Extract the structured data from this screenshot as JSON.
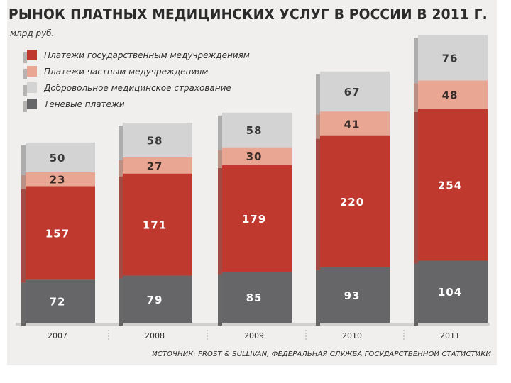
{
  "chart_data": {
    "type": "bar",
    "stacked": true,
    "title": "РЫНОК ПЛАТНЫХ МЕДИЦИНСКИХ УСЛУГ В РОССИИ В 2011 Г.",
    "ylabel": "млрд руб.",
    "categories": [
      "2007",
      "2008",
      "2009",
      "2010",
      "2011"
    ],
    "series": [
      {
        "name": "Теневые платежи",
        "values": [
          72,
          79,
          85,
          93,
          104
        ],
        "color": "#666669",
        "text_color": "#ffffff"
      },
      {
        "name": "Платежи государственным медучреждениям",
        "values": [
          157,
          171,
          179,
          220,
          254
        ],
        "color": "#c0392f",
        "text_color": "#ffffff"
      },
      {
        "name": "Платежи частным медучреждениям",
        "values": [
          23,
          27,
          30,
          41,
          48
        ],
        "color": "#e9a692",
        "text_color": "#3a2b28"
      },
      {
        "name": "Добровольное медицинское страхование",
        "values": [
          50,
          58,
          58,
          67,
          76
        ],
        "color": "#d3d3d4",
        "text_color": "#3a3a3a"
      }
    ],
    "legend_order": [
      "Платежи государственным медучреждениям",
      "Платежи частным медучреждениям",
      "Добровольное медицинское страхование",
      "Теневые платежи"
    ],
    "legend_position": "top-left",
    "source": "ИСТОЧНИК: FROST & SULLIVAN, ФЕДЕРАЛЬНАЯ СЛУЖБА ГОСУДАРСТВЕННОЙ СТАТИСТИКИ"
  }
}
